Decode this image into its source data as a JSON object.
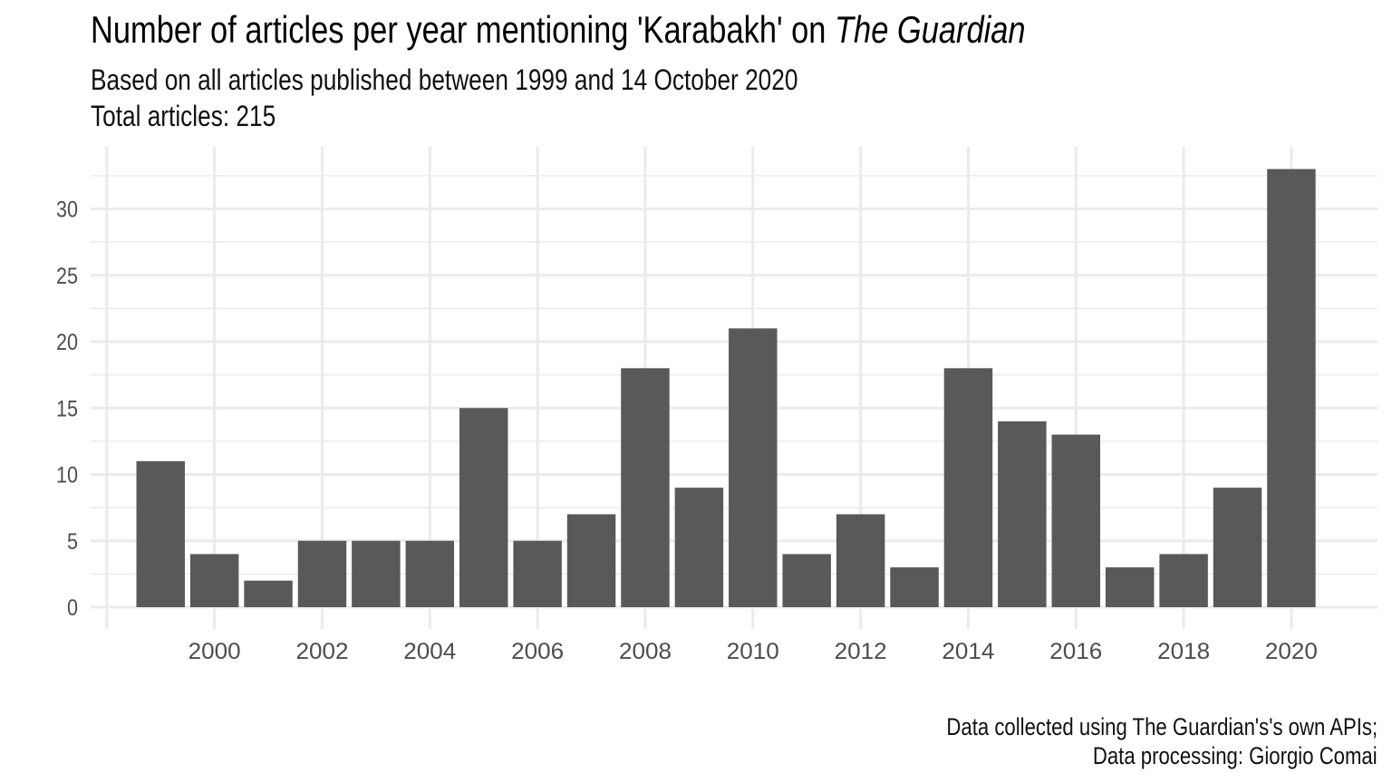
{
  "title_main": "Number of articles per year mentioning 'Karabakh' on ",
  "title_italic": "The Guardian",
  "subtitle_line1": "Based on all articles published between 1999 and 14 October 2020",
  "subtitle_line2": "Total articles: 215",
  "caption_line1": "Data collected using The Guardian's's own APIs;",
  "caption_line2": "Data processing: Giorgio Comai",
  "colors": {
    "bar": "#595959",
    "grid": "#ebebeb",
    "tick_text": "#4d4d4d"
  },
  "chart_data": {
    "type": "bar",
    "title": "Number of articles per year mentioning 'Karabakh' on The Guardian",
    "subtitle": "Based on all articles published between 1999 and 14 October 2020",
    "xlabel": "",
    "ylabel": "",
    "x": [
      1999,
      2000,
      2001,
      2002,
      2003,
      2004,
      2005,
      2006,
      2007,
      2008,
      2009,
      2010,
      2011,
      2012,
      2013,
      2014,
      2015,
      2016,
      2017,
      2018,
      2019,
      2020
    ],
    "values": [
      11,
      4,
      2,
      5,
      5,
      5,
      15,
      5,
      7,
      18,
      9,
      21,
      4,
      7,
      3,
      18,
      14,
      13,
      3,
      4,
      9,
      33
    ],
    "xticks": [
      2000,
      2002,
      2004,
      2006,
      2008,
      2010,
      2012,
      2014,
      2016,
      2018,
      2020
    ],
    "yticks": [
      0,
      5,
      10,
      15,
      20,
      25,
      30
    ],
    "xlim": [
      1997.7,
      2021.6
    ],
    "ylim": [
      0,
      34.6
    ],
    "grid": true,
    "legend": "none"
  }
}
